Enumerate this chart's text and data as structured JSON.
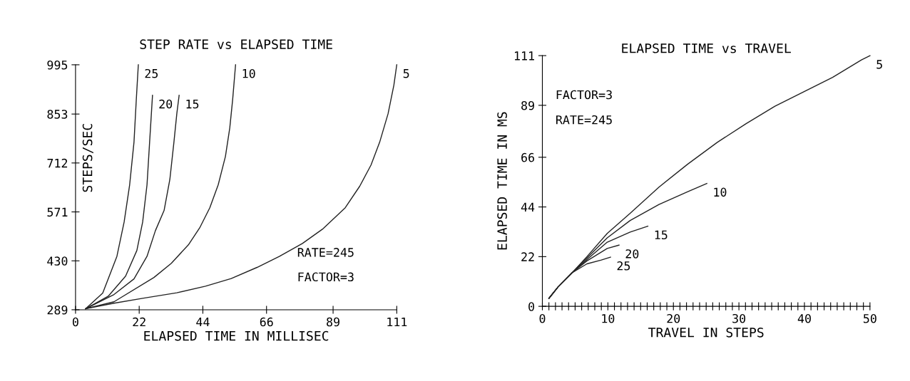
{
  "chart_data": [
    {
      "type": "line",
      "title": "STEP RATE vs ELAPSED TIME",
      "xlabel": "ELAPSED TIME IN MILLISEC",
      "ylabel": "STEPS/SEC",
      "annotations": [
        "RATE=245",
        "FACTOR=3"
      ],
      "xlim": [
        0,
        111
      ],
      "ylim": [
        289,
        995
      ],
      "xticks": [
        0,
        22,
        44,
        66,
        89,
        111
      ],
      "yticks": [
        289,
        430,
        571,
        712,
        853,
        995
      ],
      "grid": false,
      "legend": false,
      "marker": "none",
      "line_style": "solid",
      "series": [
        {
          "name": "25",
          "color": "#222222",
          "x": [
            3.5,
            9.4,
            14.3,
            16.8,
            18.7,
            20.2,
            21.0,
            21.7
          ],
          "values": [
            292,
            337,
            443,
            542,
            649,
            772,
            895,
            995
          ]
        },
        {
          "name": "20",
          "color": "#222222",
          "x": [
            3.5,
            11.3,
            17.3,
            21.2,
            23.2,
            24.7,
            25.6,
            26.6
          ],
          "values": [
            292,
            328,
            386,
            460,
            542,
            649,
            772,
            907
          ]
        },
        {
          "name": "15",
          "color": "#222222",
          "x": [
            3.5,
            13.3,
            20.2,
            24.7,
            27.6,
            30.6,
            32.6,
            34.0,
            35.0,
            35.8
          ],
          "values": [
            292,
            333,
            378,
            443,
            517,
            575,
            665,
            772,
            854,
            907
          ]
        },
        {
          "name": "10",
          "color": "#222222",
          "x": [
            3.5,
            13.3,
            27.1,
            33.1,
            39.0,
            42.9,
            46.4,
            49.3,
            51.8,
            53.3,
            54.3,
            55.3
          ],
          "values": [
            292,
            312,
            382,
            423,
            476,
            525,
            583,
            649,
            731,
            813,
            895,
            995
          ]
        },
        {
          "name": "5",
          "color": "#222222",
          "x": [
            3.5,
            13.3,
            23.2,
            35.0,
            44.9,
            53.8,
            62.7,
            70.5,
            78.4,
            85.3,
            93.2,
            98.2,
            102.1,
            105.1,
            108.0,
            110.0,
            111
          ],
          "values": [
            292,
            308,
            322,
            338,
            357,
            379,
            411,
            443,
            480,
            521,
            583,
            645,
            706,
            772,
            854,
            936,
            995
          ]
        }
      ]
    },
    {
      "type": "line",
      "title": "ELAPSED TIME vs TRAVEL",
      "xlabel": "TRAVEL IN STEPS",
      "ylabel": "ELAPSED TIME IN MS",
      "annotations": [
        "FACTOR=3",
        "RATE=245"
      ],
      "xlim": [
        0,
        50
      ],
      "ylim": [
        0,
        111
      ],
      "xticks": [
        0,
        {
          "value": 1,
          "label": null
        },
        {
          "value": 2,
          "label": null
        },
        {
          "value": 3,
          "label": null
        },
        {
          "value": 4,
          "label": null
        },
        {
          "value": 5,
          "label": null
        },
        {
          "value": 6,
          "label": null
        },
        {
          "value": 7,
          "label": null
        },
        {
          "value": 8,
          "label": null
        },
        {
          "value": 9,
          "label": null
        },
        10,
        {
          "value": 11,
          "label": null
        },
        {
          "value": 12,
          "label": null
        },
        {
          "value": 13,
          "label": null
        },
        {
          "value": 14,
          "label": null
        },
        {
          "value": 15,
          "label": null
        },
        {
          "value": 16,
          "label": null
        },
        {
          "value": 17,
          "label": null
        },
        {
          "value": 18,
          "label": null
        },
        {
          "value": 19,
          "label": null
        },
        20,
        {
          "value": 21,
          "label": null
        },
        {
          "value": 22,
          "label": null
        },
        {
          "value": 23,
          "label": null
        },
        {
          "value": 24,
          "label": null
        },
        {
          "value": 25,
          "label": null
        },
        {
          "value": 26,
          "label": null
        },
        {
          "value": 27,
          "label": null
        },
        {
          "value": 28,
          "label": null
        },
        {
          "value": 29,
          "label": null
        },
        30,
        {
          "value": 31,
          "label": null
        },
        {
          "value": 32,
          "label": null
        },
        {
          "value": 33,
          "label": null
        },
        {
          "value": 34,
          "label": null
        },
        {
          "value": 35,
          "label": null
        },
        {
          "value": 36,
          "label": null
        },
        {
          "value": 37,
          "label": null
        },
        {
          "value": 38,
          "label": null
        },
        {
          "value": 39,
          "label": null
        },
        40,
        {
          "value": 41,
          "label": null
        },
        {
          "value": 42,
          "label": null
        },
        {
          "value": 43,
          "label": null
        },
        {
          "value": 44,
          "label": null
        },
        {
          "value": 45,
          "label": null
        },
        {
          "value": 46,
          "label": null
        },
        {
          "value": 47,
          "label": null
        },
        {
          "value": 48,
          "label": null
        },
        {
          "value": 49,
          "label": null
        },
        50
      ],
      "yticks": [
        0,
        22,
        44,
        66,
        89,
        111
      ],
      "grid": false,
      "legend": false,
      "marker": "none",
      "line_style": "solid",
      "series": [
        {
          "name": "5",
          "color": "#222222",
          "x": [
            1.0,
            2.4,
            4.6,
            6.8,
            9.9,
            13.4,
            17.8,
            22.2,
            26.7,
            31.1,
            35.5,
            39.9,
            44.3,
            48.7,
            50.0
          ],
          "values": [
            3.5,
            8.6,
            15.0,
            22.0,
            32.3,
            41.2,
            52.8,
            63.0,
            72.6,
            80.9,
            88.6,
            95.0,
            101.4,
            109.1,
            111.0
          ]
        },
        {
          "name": "10",
          "color": "#222222",
          "x": [
            1.0,
            2.4,
            4.6,
            6.8,
            9.9,
            13.4,
            17.8,
            22.2,
            25.1
          ],
          "values": [
            3.5,
            8.6,
            15.0,
            21.4,
            30.3,
            38.0,
            45.1,
            50.8,
            54.4
          ]
        },
        {
          "name": "15",
          "color": "#222222",
          "x": [
            1.0,
            2.4,
            4.6,
            6.8,
            9.9,
            13.4,
            16.1
          ],
          "values": [
            3.5,
            8.6,
            15.0,
            20.7,
            28.4,
            32.9,
            35.5
          ]
        },
        {
          "name": "20",
          "color": "#222222",
          "x": [
            1.0,
            2.4,
            4.6,
            6.8,
            9.9,
            11.7
          ],
          "values": [
            3.5,
            8.6,
            15.0,
            20.1,
            25.6,
            27.1
          ]
        },
        {
          "name": "25",
          "color": "#222222",
          "x": [
            1.0,
            2.4,
            4.6,
            6.8,
            9.0,
            10.4
          ],
          "values": [
            3.5,
            8.6,
            15.0,
            18.8,
            20.5,
            21.8
          ]
        }
      ]
    }
  ]
}
